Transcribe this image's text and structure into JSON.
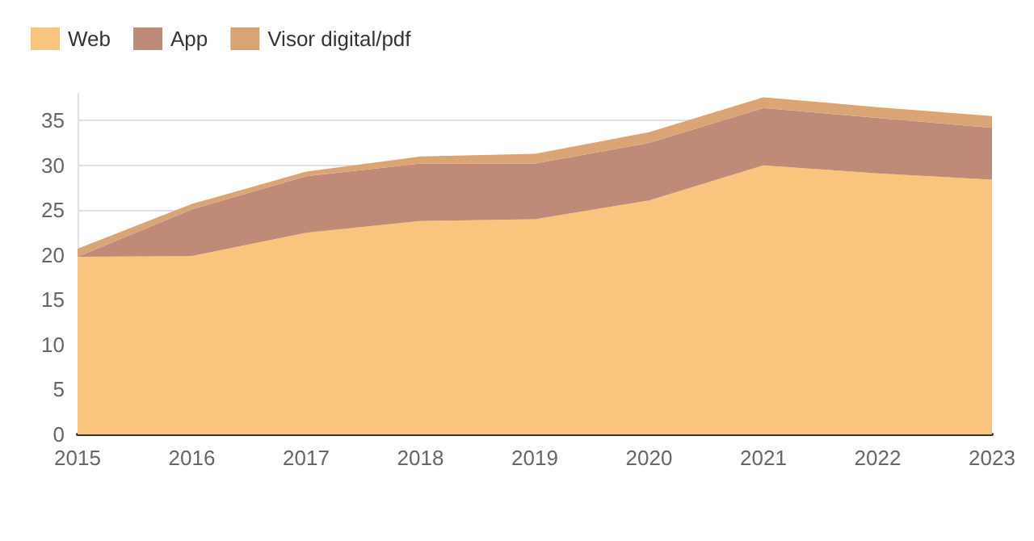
{
  "chart_data": {
    "type": "area",
    "stacked": true,
    "categories": [
      "2015",
      "2016",
      "2017",
      "2018",
      "2019",
      "2020",
      "2021",
      "2022",
      "2023"
    ],
    "series": [
      {
        "name": "Web",
        "color": "#f9c47e",
        "values": [
          19.8,
          19.9,
          22.5,
          23.8,
          24.0,
          26.1,
          30.0,
          29.1,
          28.4
        ]
      },
      {
        "name": "App",
        "color": "#bf8b78",
        "values": [
          0,
          5.2,
          6.3,
          6.4,
          6.2,
          6.4,
          6.4,
          6.2,
          5.8
        ]
      },
      {
        "name": "Visor digital/pdf",
        "color": "#dba474",
        "values": [
          0.9,
          0.6,
          0.5,
          0.8,
          1.1,
          1.2,
          1.2,
          1.2,
          1.3
        ]
      }
    ],
    "ylim": [
      0,
      38
    ],
    "yticks": [
      0,
      5,
      10,
      15,
      20,
      25,
      30,
      35
    ],
    "grid": "y",
    "legend": "top left"
  }
}
